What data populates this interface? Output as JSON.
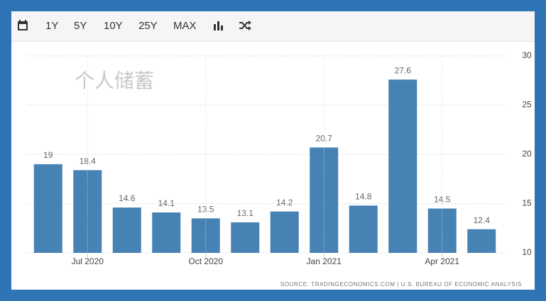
{
  "toolbar": [
    "1Y",
    "5Y",
    "10Y",
    "25Y",
    "MAX"
  ],
  "chart_data": {
    "type": "bar",
    "title": "个人储蓄",
    "categories": [
      null,
      "Jul 2020",
      null,
      null,
      "Oct 2020",
      null,
      null,
      "Jan 2021",
      null,
      null,
      "Apr 2021",
      null
    ],
    "values": [
      19,
      18.4,
      14.6,
      14.1,
      13.5,
      13.1,
      14.2,
      20.7,
      14.8,
      27.6,
      14.5,
      12.4
    ],
    "color": "#4682b4",
    "ylim": [
      10,
      30
    ],
    "yticks": [
      10,
      15,
      20,
      25,
      30
    ],
    "grid": true,
    "source": "SOURCE: TRADINGECONOMICS.COM | U.S. BUREAU OF ECONOMIC ANALYSIS"
  }
}
